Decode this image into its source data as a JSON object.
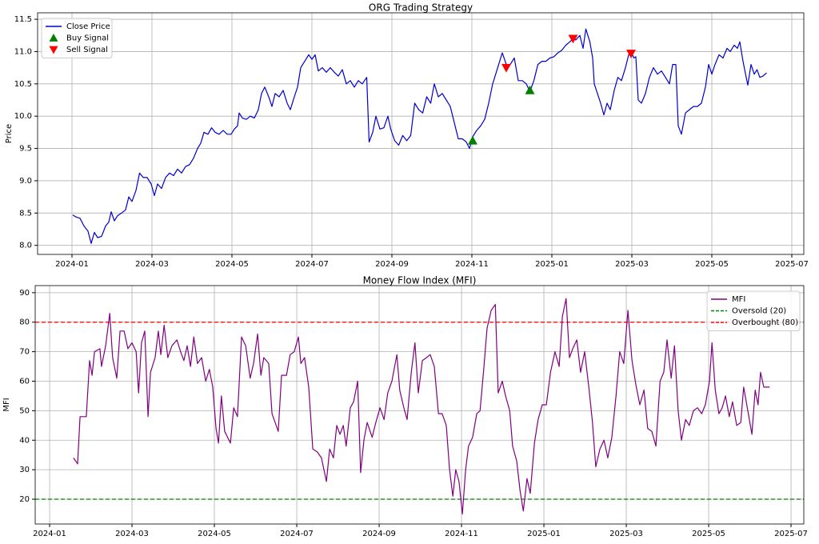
{
  "chart_data": [
    {
      "type": "line",
      "title": "ORG Trading Strategy",
      "ylabel": "Price",
      "grid": true,
      "legend": "upper left",
      "xlim": [
        -0.86,
        18.3
      ],
      "ylim": [
        7.86,
        11.6
      ],
      "xticks": [
        {
          "value": 0,
          "label": "2024-01"
        },
        {
          "value": 2,
          "label": "2024-03"
        },
        {
          "value": 4,
          "label": "2024-05"
        },
        {
          "value": 6,
          "label": "2024-07"
        },
        {
          "value": 8,
          "label": "2024-09"
        },
        {
          "value": 10,
          "label": "2024-11"
        },
        {
          "value": 12,
          "label": "2025-01"
        },
        {
          "value": 14,
          "label": "2025-03"
        },
        {
          "value": 16,
          "label": "2025-05"
        },
        {
          "value": 18,
          "label": "2025-07"
        }
      ],
      "yticks": [
        {
          "value": 8,
          "label": "8.0"
        },
        8.5,
        {
          "value": 9,
          "label": "9.0"
        },
        9.5,
        {
          "value": 10,
          "label": "10.0"
        },
        10.5,
        {
          "value": 11,
          "label": "11.0"
        },
        11.5
      ],
      "series": [
        {
          "name": "Close Price",
          "color": "#0000cc",
          "x": [
            0.02,
            0.1,
            0.2,
            0.3,
            0.4,
            0.48,
            0.56,
            0.64,
            0.74,
            0.84,
            0.92,
            0.98,
            1.06,
            1.14,
            1.24,
            1.34,
            1.42,
            1.5,
            1.6,
            1.69,
            1.78,
            1.88,
            1.98,
            2.06,
            2.14,
            2.24,
            2.34,
            2.44,
            2.54,
            2.64,
            2.74,
            2.84,
            2.94,
            3.04,
            3.14,
            3.22,
            3.3,
            3.4,
            3.49,
            3.58,
            3.68,
            3.78,
            3.88,
            3.98,
            4.06,
            4.14,
            4.18,
            4.26,
            4.36,
            4.46,
            4.56,
            4.66,
            4.74,
            4.82,
            4.92,
            5.0,
            5.08,
            5.18,
            5.28,
            5.38,
            5.46,
            5.56,
            5.64,
            5.72,
            5.82,
            5.92,
            6.0,
            6.08,
            6.16,
            6.26,
            6.36,
            6.46,
            6.56,
            6.66,
            6.76,
            6.86,
            6.96,
            7.06,
            7.16,
            7.26,
            7.37,
            7.43,
            7.52,
            7.6,
            7.7,
            7.8,
            7.9,
            7.97,
            8.07,
            8.17,
            8.27,
            8.37,
            8.47,
            8.57,
            8.67,
            8.77,
            8.87,
            8.97,
            9.06,
            9.16,
            9.26,
            9.36,
            9.46,
            9.56,
            9.66,
            9.76,
            9.86,
            9.94,
            10.02,
            10.12,
            10.22,
            10.32,
            10.42,
            10.52,
            10.62,
            10.76,
            10.86,
            10.96,
            11.06,
            11.16,
            11.26,
            11.36,
            11.45,
            11.55,
            11.65,
            11.75,
            11.85,
            11.95,
            12.05,
            12.15,
            12.25,
            12.35,
            12.45,
            12.53,
            12.6,
            12.7,
            12.78,
            12.85,
            12.95,
            13.02,
            13.06,
            13.14,
            13.22,
            13.3,
            13.38,
            13.46,
            13.56,
            13.65,
            13.74,
            13.84,
            13.92,
            13.98,
            14.05,
            14.1,
            14.16,
            14.24,
            14.34,
            14.44,
            14.54,
            14.64,
            14.74,
            14.84,
            14.94,
            15.02,
            15.1,
            15.16,
            15.24,
            15.34,
            15.44,
            15.54,
            15.64,
            15.74,
            15.84,
            15.92,
            16.0,
            16.08,
            16.18,
            16.28,
            16.38,
            16.46,
            16.56,
            16.64,
            16.7,
            16.78,
            16.86,
            16.9,
            16.98,
            17.06,
            17.13,
            17.2,
            17.28,
            17.37
          ],
          "values": [
            8.47,
            8.44,
            8.42,
            8.3,
            8.22,
            8.03,
            8.2,
            8.12,
            8.14,
            8.3,
            8.36,
            8.52,
            8.38,
            8.46,
            8.5,
            8.55,
            8.75,
            8.68,
            8.85,
            9.12,
            9.05,
            9.05,
            8.95,
            8.77,
            8.95,
            8.88,
            9.05,
            9.12,
            9.08,
            9.18,
            9.12,
            9.22,
            9.25,
            9.35,
            9.5,
            9.58,
            9.75,
            9.72,
            9.82,
            9.75,
            9.72,
            9.78,
            9.72,
            9.72,
            9.8,
            9.85,
            10.05,
            9.97,
            9.95,
            10.0,
            9.97,
            10.1,
            10.35,
            10.45,
            10.3,
            10.15,
            10.35,
            10.3,
            10.4,
            10.2,
            10.1,
            10.3,
            10.45,
            10.75,
            10.85,
            10.95,
            10.88,
            10.95,
            10.7,
            10.75,
            10.68,
            10.75,
            10.68,
            10.62,
            10.72,
            10.5,
            10.55,
            10.45,
            10.55,
            10.5,
            10.6,
            9.6,
            9.75,
            10.0,
            9.8,
            9.82,
            10.0,
            9.8,
            9.62,
            9.55,
            9.7,
            9.62,
            9.7,
            10.2,
            10.1,
            10.05,
            10.3,
            10.2,
            10.5,
            10.3,
            10.35,
            10.25,
            10.15,
            9.9,
            9.65,
            9.65,
            9.6,
            9.5,
            9.68,
            9.78,
            9.85,
            9.95,
            10.2,
            10.5,
            10.7,
            10.98,
            10.8,
            10.8,
            10.9,
            10.55,
            10.55,
            10.5,
            10.38,
            10.55,
            10.8,
            10.85,
            10.85,
            10.9,
            10.92,
            10.98,
            11.02,
            11.1,
            11.15,
            11.2,
            11.18,
            11.25,
            11.05,
            11.35,
            11.15,
            10.9,
            10.5,
            10.35,
            10.2,
            10.02,
            10.2,
            10.1,
            10.4,
            10.6,
            10.55,
            10.75,
            10.95,
            11.0,
            10.9,
            10.92,
            10.25,
            10.2,
            10.35,
            10.6,
            10.75,
            10.65,
            10.7,
            10.6,
            10.5,
            10.8,
            10.8,
            9.85,
            9.72,
            10.05,
            10.1,
            10.15,
            10.15,
            10.2,
            10.45,
            10.8,
            10.65,
            10.8,
            10.95,
            10.9,
            11.05,
            11.0,
            11.1,
            11.05,
            11.15,
            10.85,
            10.6,
            10.48,
            10.8,
            10.65,
            10.72,
            10.6,
            10.62,
            10.67
          ]
        },
        {
          "name": "Buy Signal",
          "color": "green",
          "marker": "^",
          "x": [
            10.02,
            11.45
          ],
          "values": [
            9.62,
            10.4
          ]
        },
        {
          "name": "Sell Signal",
          "color": "red",
          "marker": "v",
          "x": [
            10.86,
            12.53,
            13.98
          ],
          "values": [
            10.75,
            11.2,
            10.97
          ]
        }
      ]
    },
    {
      "type": "line",
      "title": "Money Flow Index (MFI)",
      "ylabel": "MFI",
      "grid": true,
      "legend": "upper right",
      "xlim": [
        -0.35,
        18.31
      ],
      "ylim": [
        11.6,
        92.4
      ],
      "xticks": [
        {
          "value": 0,
          "label": "2024-01"
        },
        {
          "value": 2,
          "label": "2024-03"
        },
        {
          "value": 4,
          "label": "2024-05"
        },
        {
          "value": 6,
          "label": "2024-07"
        },
        {
          "value": 8,
          "label": "2024-09"
        },
        {
          "value": 10,
          "label": "2024-11"
        },
        {
          "value": 12,
          "label": "2025-01"
        },
        {
          "value": 14,
          "label": "2025-03"
        },
        {
          "value": 16,
          "label": "2025-05"
        },
        {
          "value": 18,
          "label": "2025-07"
        }
      ],
      "yticks": [
        20,
        30,
        40,
        50,
        60,
        70,
        80,
        90
      ],
      "series": [
        {
          "name": "MFI",
          "color": "purple",
          "x": [
            0.58,
            0.68,
            0.74,
            0.89,
            0.97,
            1.03,
            1.09,
            1.22,
            1.26,
            1.36,
            1.46,
            1.53,
            1.63,
            1.71,
            1.81,
            1.9,
            2.0,
            2.1,
            2.16,
            2.23,
            2.31,
            2.39,
            2.45,
            2.56,
            2.64,
            2.7,
            2.78,
            2.87,
            2.97,
            3.09,
            3.18,
            3.26,
            3.34,
            3.42,
            3.5,
            3.59,
            3.69,
            3.79,
            3.88,
            3.96,
            4.04,
            4.1,
            4.17,
            4.25,
            4.39,
            4.47,
            4.56,
            4.66,
            4.76,
            4.87,
            4.95,
            5.05,
            5.13,
            5.2,
            5.32,
            5.4,
            5.55,
            5.63,
            5.75,
            5.84,
            5.94,
            6.04,
            6.1,
            6.19,
            6.29,
            6.39,
            6.5,
            6.6,
            6.72,
            6.8,
            6.89,
            6.97,
            7.05,
            7.13,
            7.2,
            7.3,
            7.38,
            7.48,
            7.55,
            7.63,
            7.71,
            7.83,
            7.92,
            8.02,
            8.12,
            8.21,
            8.31,
            8.43,
            8.5,
            8.6,
            8.68,
            8.78,
            8.87,
            8.95,
            9.05,
            9.15,
            9.24,
            9.34,
            9.44,
            9.53,
            9.63,
            9.71,
            9.79,
            9.86,
            9.94,
            10.02,
            10.1,
            10.17,
            10.27,
            10.37,
            10.45,
            10.54,
            10.62,
            10.72,
            10.82,
            10.89,
            10.99,
            11.07,
            11.17,
            11.24,
            11.34,
            11.42,
            11.5,
            11.59,
            11.67,
            11.77,
            11.86,
            11.96,
            12.06,
            12.16,
            12.27,
            12.37,
            12.45,
            12.54,
            12.62,
            12.7,
            12.8,
            12.89,
            12.99,
            13.09,
            13.18,
            13.26,
            13.36,
            13.46,
            13.55,
            13.65,
            13.75,
            13.84,
            13.94,
            14.04,
            14.14,
            14.23,
            14.33,
            14.43,
            14.52,
            14.62,
            14.72,
            14.82,
            14.91,
            14.99,
            15.09,
            15.17,
            15.26,
            15.34,
            15.44,
            15.53,
            15.63,
            15.73,
            15.83,
            15.92,
            16.02,
            16.08,
            16.16,
            16.25,
            16.33,
            16.41,
            16.5,
            16.58,
            16.68,
            16.78,
            16.85,
            16.95,
            17.05,
            17.13,
            17.2,
            17.26,
            17.34,
            17.48
          ],
          "values": [
            34,
            32,
            48,
            48,
            67,
            62,
            70,
            71,
            65,
            72,
            83,
            68,
            61,
            77,
            77,
            71,
            73,
            70,
            56,
            73,
            77,
            48,
            63,
            68,
            77,
            69,
            79,
            68,
            72,
            74,
            70,
            67,
            72,
            65,
            75,
            66,
            68,
            60,
            64,
            58,
            44,
            39,
            55,
            43,
            39,
            51,
            48,
            75,
            72,
            61,
            66,
            76,
            62,
            68,
            66,
            49,
            43,
            62,
            62,
            69,
            70,
            75,
            66,
            68,
            58,
            37,
            36,
            34,
            26,
            37,
            34,
            45,
            42,
            45,
            38,
            51,
            53,
            60,
            29,
            40,
            46,
            41,
            46,
            51,
            47,
            56,
            60,
            69,
            57,
            51,
            47,
            63,
            73,
            56,
            67,
            68,
            69,
            65,
            49,
            49,
            45,
            30,
            21,
            30,
            26,
            15,
            30,
            38,
            41,
            49,
            50,
            64,
            78,
            84,
            86,
            56,
            60,
            55,
            50,
            38,
            33,
            23,
            16,
            27,
            22,
            39,
            47,
            52,
            52,
            63,
            70,
            65,
            82,
            88,
            68,
            71,
            74,
            63,
            70,
            58,
            46,
            31,
            37,
            40,
            34,
            41,
            55,
            70,
            66,
            84,
            67,
            59,
            52,
            57,
            44,
            43,
            38,
            60,
            63,
            74,
            61,
            72,
            50,
            40,
            47,
            45,
            50,
            51,
            49,
            52,
            60,
            73,
            57,
            49,
            51,
            55,
            48,
            53,
            45,
            46,
            58,
            50,
            42,
            57,
            52,
            63,
            58,
            58
          ]
        }
      ],
      "hlines": [
        {
          "name": "Oversold (20)",
          "value": 20,
          "color": "green"
        },
        {
          "name": "Overbought (80)",
          "value": 80,
          "color": "red"
        }
      ]
    }
  ]
}
